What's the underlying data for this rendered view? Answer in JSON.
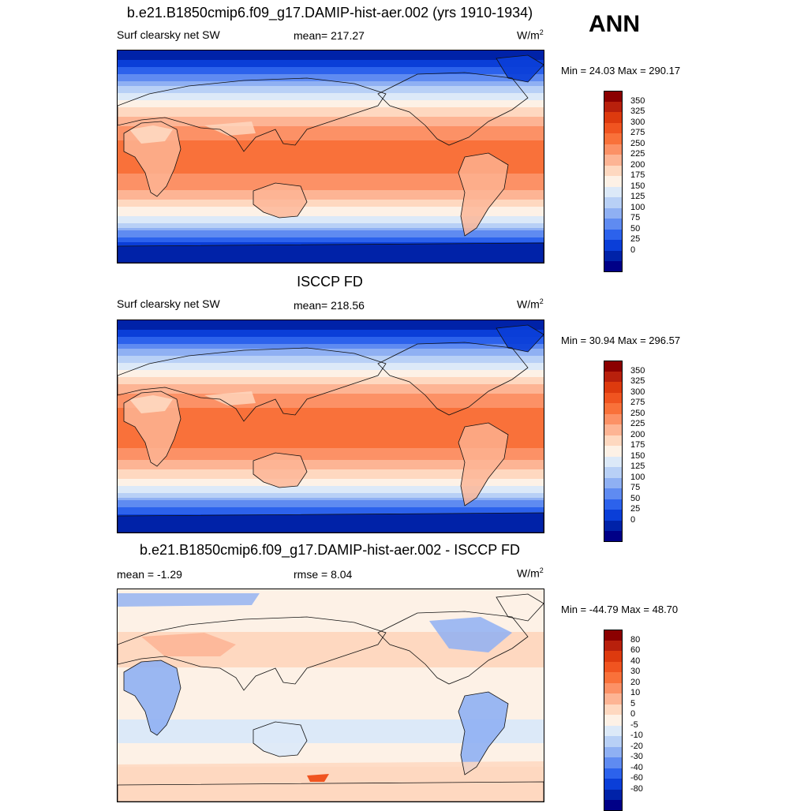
{
  "season": "ANN",
  "panels": [
    {
      "title": "b.e21.B1850cmip6.f09_g17.DAMIP-hist-aer.002 (yrs 1910-1934)",
      "left_label": "Surf clearsky net SW",
      "center_label": "mean= 217.27",
      "units": "W/m",
      "units_sup": "2",
      "minmax": "Min =  24.03 Max = 290.17",
      "colorbar": {
        "ticks": [
          "350",
          "325",
          "300",
          "275",
          "250",
          "225",
          "200",
          "175",
          "150",
          "125",
          "100",
          "75",
          "50",
          "25",
          "0"
        ],
        "colors": [
          "#8b0000",
          "#b8200c",
          "#dd3a0e",
          "#f05420",
          "#f9713a",
          "#fc9166",
          "#fdb494",
          "#fed8c0",
          "#fdf1e6",
          "#dce9f8",
          "#b8d0f6",
          "#8fb0f3",
          "#5f8bf1",
          "#2c62ec",
          "#0a3ed8",
          "#0022a8",
          "#000087"
        ],
        "map_levels": [
          0,
          25,
          50,
          75,
          100,
          125,
          150,
          175,
          200,
          225,
          250,
          275,
          300
        ]
      },
      "field_kind": "model"
    },
    {
      "title": "ISCCP FD",
      "left_label": "Surf clearsky net SW",
      "center_label": "mean= 218.56",
      "units": "W/m",
      "units_sup": "2",
      "minmax": "Min =  30.94 Max = 296.57",
      "colorbar": {
        "ticks": [
          "350",
          "325",
          "300",
          "275",
          "250",
          "225",
          "200",
          "175",
          "150",
          "125",
          "100",
          "75",
          "50",
          "25",
          "0"
        ],
        "colors": [
          "#8b0000",
          "#b8200c",
          "#dd3a0e",
          "#f05420",
          "#f9713a",
          "#fc9166",
          "#fdb494",
          "#fed8c0",
          "#fdf1e6",
          "#dce9f8",
          "#b8d0f6",
          "#8fb0f3",
          "#5f8bf1",
          "#2c62ec",
          "#0a3ed8",
          "#0022a8",
          "#000087"
        ]
      },
      "field_kind": "obs"
    },
    {
      "title": "b.e21.B1850cmip6.f09_g17.DAMIP-hist-aer.002 - ISCCP FD",
      "left_label": "mean =  -1.29",
      "center_label": "rmse =   8.04",
      "units": "W/m",
      "units_sup": "2",
      "minmax": "Min = -44.79 Max =  48.70",
      "colorbar": {
        "ticks": [
          "80",
          "60",
          "40",
          "30",
          "20",
          "10",
          "5",
          "0",
          "-5",
          "-10",
          "-20",
          "-30",
          "-40",
          "-60",
          "-80"
        ],
        "colors": [
          "#8b0000",
          "#b8200c",
          "#dd3a0e",
          "#f05420",
          "#f9713a",
          "#fc9166",
          "#fdb494",
          "#fed8c0",
          "#fdf1e6",
          "#dce9f8",
          "#b8d0f6",
          "#8fb0f3",
          "#5f8bf1",
          "#2c62ec",
          "#0a3ed8",
          "#0022a8",
          "#000087"
        ]
      },
      "field_kind": "diff"
    }
  ]
}
